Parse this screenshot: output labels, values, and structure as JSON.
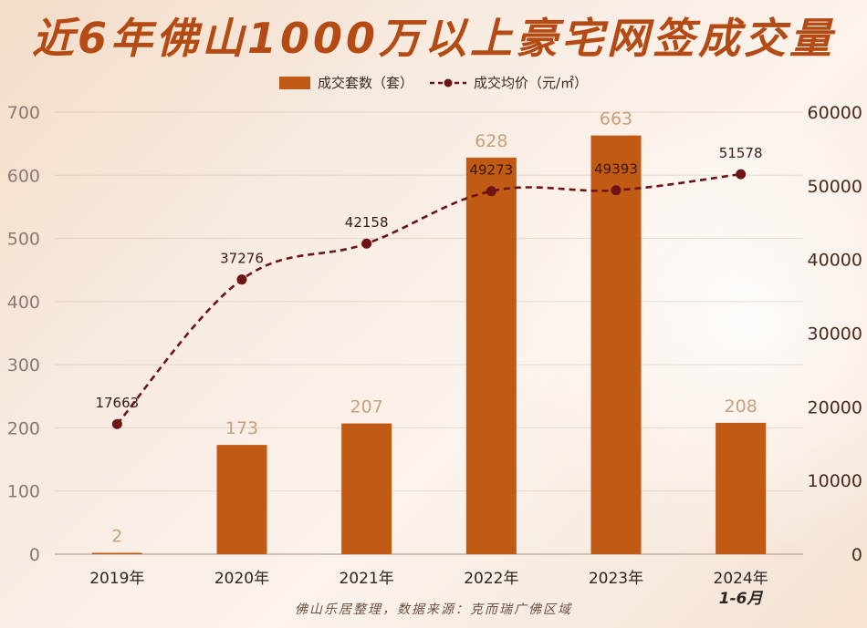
{
  "title": "近6年佛山1000万以上豪宅网签成交量",
  "footer": "佛山乐居整理，数据来源：克而瑞广佛区域",
  "colors": {
    "bar": "#c05a14",
    "line": "#6e1414",
    "bar_label": "#c9a07a",
    "title": "#b44a14"
  },
  "chart_data": {
    "type": "bar",
    "categories": [
      "2019年",
      "2020年",
      "2021年",
      "2022年",
      "2023年",
      "2024年"
    ],
    "category_sublabels": [
      "",
      "",
      "",
      "",
      "",
      "1-6月"
    ],
    "series": [
      {
        "name": "成交套数（套）",
        "type": "bar",
        "axis": "left",
        "values": [
          2,
          173,
          207,
          628,
          663,
          208
        ]
      },
      {
        "name": "成交均价（元/㎡）",
        "type": "line",
        "axis": "right",
        "values": [
          17663,
          37276,
          42158,
          49273,
          49393,
          51578
        ]
      }
    ],
    "y_left": {
      "min": 0,
      "max": 700,
      "ticks": [
        0,
        100,
        200,
        300,
        400,
        500,
        600,
        700
      ]
    },
    "y_right": {
      "min": 0,
      "max": 60000,
      "ticks": [
        0,
        10000,
        20000,
        30000,
        40000,
        50000,
        60000
      ]
    },
    "legend_position": "top"
  }
}
